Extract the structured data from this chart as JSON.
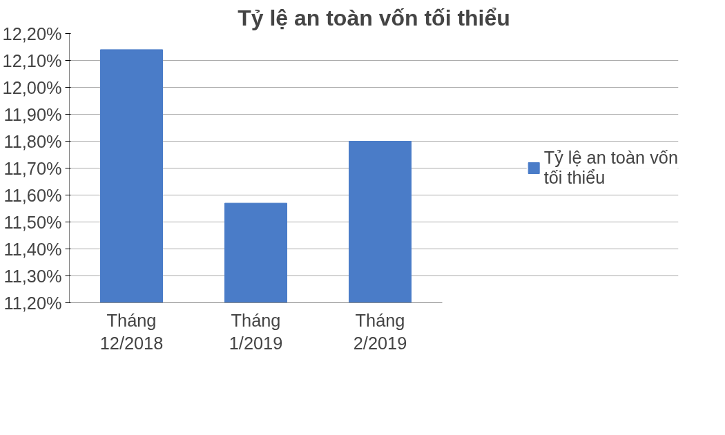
{
  "chart_data": {
    "type": "bar",
    "title": "Tỷ lệ an toàn vốn tối thiểu",
    "categories": [
      "Tháng 12/2018",
      "Tháng 1/2019",
      "Tháng 2/2019"
    ],
    "series": [
      {
        "name": "Tỷ lệ an toàn vốn tối thiểu",
        "color": "#4a7cc8",
        "values": [
          12.14,
          11.57,
          11.8
        ]
      }
    ],
    "ylim": [
      11.2,
      12.2
    ],
    "yticks": [
      {
        "value": 11.2,
        "label": "11,20%"
      },
      {
        "value": 11.3,
        "label": "11,30%"
      },
      {
        "value": 11.4,
        "label": "11,40%"
      },
      {
        "value": 11.5,
        "label": "11,50%"
      },
      {
        "value": 11.6,
        "label": "11,60%"
      },
      {
        "value": 11.7,
        "label": "11,70%"
      },
      {
        "value": 11.8,
        "label": "11,80%"
      },
      {
        "value": 11.9,
        "label": "11,90%"
      },
      {
        "value": 12.0,
        "label": "12,00%"
      },
      {
        "value": 12.1,
        "label": "12,10%"
      },
      {
        "value": 12.2,
        "label": "12,20%"
      }
    ],
    "grid": "y",
    "legend": "right"
  }
}
